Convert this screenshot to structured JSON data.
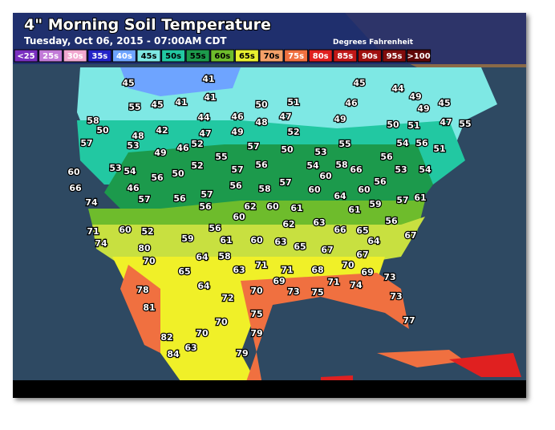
{
  "header": {
    "title": "4\" Morning Soil Temperature",
    "subtitle": "Tuesday, Oct 06, 2015 - 07:00AM CDT",
    "units": "Degrees Fahrenheit"
  },
  "legend": [
    {
      "label": "<25",
      "color": "#7a2fc0"
    },
    {
      "label": "25s",
      "color": "#c27ad8"
    },
    {
      "label": "30s",
      "color": "#f2a8d0"
    },
    {
      "label": "35s",
      "color": "#2424c8"
    },
    {
      "label": "40s",
      "color": "#6ea4ff"
    },
    {
      "label": "45s",
      "color": "#7ee8e4"
    },
    {
      "label": "50s",
      "color": "#22c8a2"
    },
    {
      "label": "55s",
      "color": "#1c9a4c"
    },
    {
      "label": "60s",
      "color": "#6ebc2c"
    },
    {
      "label": "65s",
      "color": "#e8f030"
    },
    {
      "label": "70s",
      "color": "#f4a068"
    },
    {
      "label": "75s",
      "color": "#f07040"
    },
    {
      "label": "80s",
      "color": "#e02020"
    },
    {
      "label": "85s",
      "color": "#c01818"
    },
    {
      "label": "90s",
      "color": "#a01010"
    },
    {
      "label": "95s",
      "color": "#800c0c"
    },
    {
      "label": ">100",
      "color": "#600808"
    }
  ],
  "readings": [
    45,
    41,
    41,
    41,
    45,
    55,
    50,
    51,
    45,
    44,
    49,
    46,
    45,
    49,
    42,
    48,
    44,
    47,
    46,
    49,
    48,
    47,
    52,
    49,
    50,
    51,
    47,
    55,
    50,
    58,
    57,
    53,
    49,
    46,
    52,
    55,
    57,
    50,
    53,
    55,
    56,
    54,
    56,
    51,
    53,
    54,
    53,
    54,
    56,
    50,
    52,
    57,
    56,
    54,
    60,
    58,
    66,
    56,
    60,
    66,
    74,
    46,
    57,
    56,
    57,
    56,
    56,
    58,
    57,
    60,
    64,
    60,
    59,
    57,
    61,
    60,
    62,
    60,
    61,
    62,
    63,
    61,
    56,
    71,
    60,
    52,
    59,
    56,
    61,
    60,
    63,
    65,
    66,
    65,
    64,
    67,
    74,
    80,
    70,
    64,
    58,
    63,
    71,
    71,
    67,
    67,
    70,
    69,
    73,
    68,
    65,
    64,
    72,
    70,
    69,
    73,
    75,
    71,
    74,
    73,
    77,
    78,
    81,
    75,
    70,
    79,
    82,
    70,
    63,
    84,
    79
  ]
}
